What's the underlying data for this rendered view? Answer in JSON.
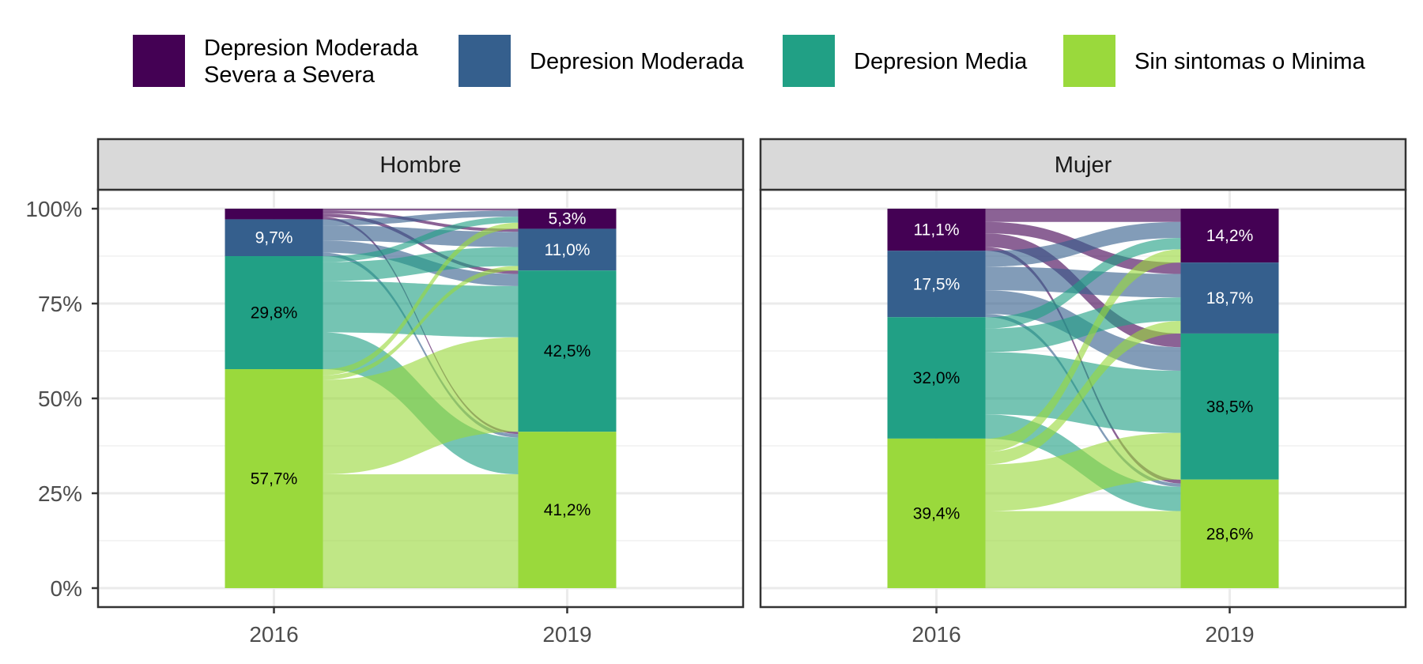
{
  "chart_data": {
    "type": "alluvial",
    "x": [
      "2016",
      "2019"
    ],
    "y_ticks": [
      "0%",
      "25%",
      "50%",
      "75%",
      "100%"
    ],
    "ylim": [
      0,
      100
    ],
    "grid": true,
    "legend_position": "top",
    "categories": [
      {
        "key": "sev",
        "label_lines": [
          "Depresion Moderada",
          "Severa a Severa"
        ],
        "color": "#440154"
      },
      {
        "key": "mod",
        "label_lines": [
          "Depresion Moderada"
        ],
        "color": "#355F8D"
      },
      {
        "key": "med",
        "label_lines": [
          "Depresion Media"
        ],
        "color": "#21A085"
      },
      {
        "key": "min",
        "label_lines": [
          "Sin sintomas o Minima"
        ],
        "color": "#9AD93C"
      }
    ],
    "panels": [
      {
        "strip": "Hombre",
        "stacks": {
          "2016": {
            "sev": 2.8,
            "mod": 9.7,
            "med": 29.8,
            "min": 57.7
          },
          "2019": {
            "sev": 5.3,
            "mod": 11.0,
            "med": 42.5,
            "min": 41.2
          }
        },
        "labels": {
          "2016": {
            "sev": "",
            "mod": "9,7%",
            "med": "29,8%",
            "min": "57,7%"
          },
          "2019": {
            "sev": "5,3%",
            "mod": "11,0%",
            "med": "42,5%",
            "min": "41,2%"
          }
        },
        "flows": [
          {
            "from": "sev",
            "to": "sev",
            "value": 0.5
          },
          {
            "from": "sev",
            "to": "mod",
            "value": 0.8
          },
          {
            "from": "sev",
            "to": "med",
            "value": 0.9
          },
          {
            "from": "sev",
            "to": "min",
            "value": 0.6
          },
          {
            "from": "mod",
            "to": "sev",
            "value": 1.6
          },
          {
            "from": "mod",
            "to": "mod",
            "value": 4.0
          },
          {
            "from": "mod",
            "to": "med",
            "value": 3.2
          },
          {
            "from": "mod",
            "to": "min",
            "value": 0.9
          },
          {
            "from": "med",
            "to": "sev",
            "value": 1.6
          },
          {
            "from": "med",
            "to": "mod",
            "value": 5.0
          },
          {
            "from": "med",
            "to": "med",
            "value": 13.5
          },
          {
            "from": "med",
            "to": "min",
            "value": 9.7
          },
          {
            "from": "min",
            "to": "sev",
            "value": 1.6
          },
          {
            "from": "min",
            "to": "mod",
            "value": 1.2
          },
          {
            "from": "min",
            "to": "med",
            "value": 24.9
          },
          {
            "from": "min",
            "to": "min",
            "value": 30.0
          }
        ]
      },
      {
        "strip": "Mujer",
        "stacks": {
          "2016": {
            "sev": 11.1,
            "mod": 17.5,
            "med": 32.0,
            "min": 39.4
          },
          "2019": {
            "sev": 14.2,
            "mod": 18.7,
            "med": 38.5,
            "min": 28.6
          }
        },
        "labels": {
          "2016": {
            "sev": "11,1%",
            "mod": "17,5%",
            "med": "32,0%",
            "min": "39,4%"
          },
          "2019": {
            "sev": "14,2%",
            "mod": "18,7%",
            "med": "38,5%",
            "min": "28,6%"
          }
        },
        "flows": [
          {
            "from": "sev",
            "to": "sev",
            "value": 3.5
          },
          {
            "from": "sev",
            "to": "mod",
            "value": 3.0
          },
          {
            "from": "sev",
            "to": "med",
            "value": 3.6
          },
          {
            "from": "sev",
            "to": "min",
            "value": 1.0
          },
          {
            "from": "mod",
            "to": "sev",
            "value": 4.2
          },
          {
            "from": "mod",
            "to": "mod",
            "value": 6.2
          },
          {
            "from": "mod",
            "to": "med",
            "value": 6.2
          },
          {
            "from": "mod",
            "to": "min",
            "value": 0.9
          },
          {
            "from": "med",
            "to": "sev",
            "value": 3.0
          },
          {
            "from": "med",
            "to": "mod",
            "value": 6.2
          },
          {
            "from": "med",
            "to": "med",
            "value": 16.4
          },
          {
            "from": "med",
            "to": "min",
            "value": 6.4
          },
          {
            "from": "min",
            "to": "sev",
            "value": 3.5
          },
          {
            "from": "min",
            "to": "mod",
            "value": 3.3
          },
          {
            "from": "min",
            "to": "med",
            "value": 12.3
          },
          {
            "from": "min",
            "to": "min",
            "value": 20.3
          }
        ]
      }
    ]
  }
}
